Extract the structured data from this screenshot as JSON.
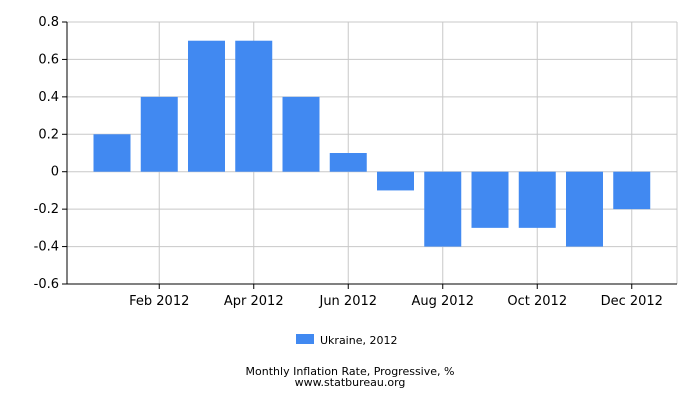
{
  "chart_data": {
    "type": "bar",
    "categories": [
      "Jan 2012",
      "Feb 2012",
      "Mar 2012",
      "Apr 2012",
      "May 2012",
      "Jun 2012",
      "Jul 2012",
      "Aug 2012",
      "Sep 2012",
      "Oct 2012",
      "Nov 2012",
      "Dec 2012"
    ],
    "x_tick_labels_shown": [
      "Feb 2012",
      "Apr 2012",
      "Jun 2012",
      "Aug 2012",
      "Oct 2012",
      "Dec 2012"
    ],
    "series": [
      {
        "name": "Ukraine, 2012",
        "color": "#4189f1",
        "values": [
          0.2,
          0.4,
          0.7,
          0.7,
          0.4,
          0.1,
          -0.1,
          -0.4,
          -0.3,
          -0.3,
          -0.4,
          -0.2
        ]
      }
    ],
    "y_ticks": [
      0.8,
      0.6,
      0.4,
      0.2,
      0,
      -0.2,
      -0.4,
      -0.6
    ],
    "y_tick_labels": [
      "0.8",
      "0.6",
      "0.4",
      "0.2",
      "0",
      "-0.2",
      "-0.4",
      "-0.6"
    ],
    "ylim": [
      -0.6,
      0.8
    ],
    "grid": true,
    "legend_position": "bottom-center",
    "title": "Monthly Inflation Rate, Progressive, %",
    "subtitle": "www.statbureau.org",
    "xlabel": "",
    "ylabel": ""
  }
}
